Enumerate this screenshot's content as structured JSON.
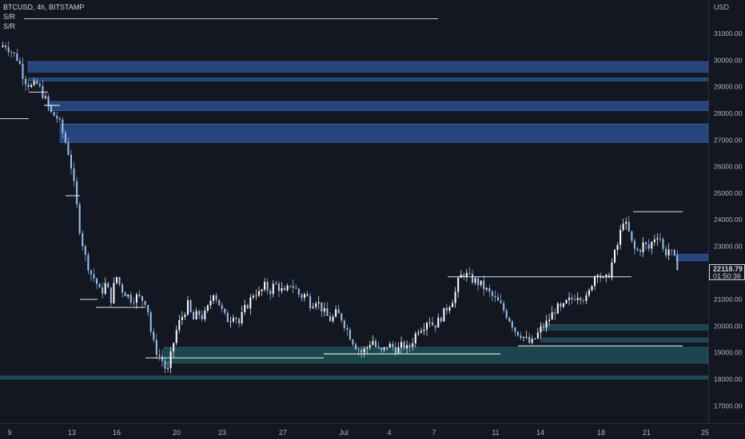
{
  "legend": {
    "symbol": "BTCUSD, 4h, BITSTAMP",
    "indicators": [
      "S/R",
      "S/R"
    ]
  },
  "axis": {
    "unit": "USD",
    "y_ticks": [
      "17000.00",
      "18000.00",
      "19000.00",
      "20000.00",
      "21000.00",
      "22000.00",
      "23000.00",
      "24000.00",
      "25000.00",
      "26000.00",
      "27000.00",
      "28000.00",
      "29000.00",
      "30000.00",
      "31000.00"
    ],
    "x_ticks": [
      "9",
      "13",
      "16",
      "20",
      "23",
      "27",
      "Jul",
      "4",
      "7",
      "11",
      "14",
      "18",
      "21",
      "25"
    ]
  },
  "last_price": {
    "value": "22118.79",
    "countdown": "01:50:36"
  },
  "colors": {
    "background": "#131722",
    "candle_up": "#ffffff",
    "candle_down": "#9dc2ec",
    "resistance_zone": "#2a4e8a",
    "support_zone": "#1e4d56",
    "level_line": "#ffffff",
    "text": "#b2b5be"
  },
  "chart_data": {
    "type": "candlestick",
    "symbol": "BTCUSD",
    "timeframe": "4h",
    "exchange": "BITSTAMP",
    "y_range": [
      16500,
      32200
    ],
    "x_range": [
      8.2,
      25.2
    ],
    "close_path": [
      [
        8.2,
        30500
      ],
      [
        8.5,
        30600
      ],
      [
        8.9,
        30300
      ],
      [
        9.3,
        30000
      ],
      [
        9.6,
        29300
      ],
      [
        10.0,
        29000
      ],
      [
        10.4,
        29100
      ],
      [
        10.8,
        28600
      ],
      [
        11.2,
        28000
      ],
      [
        11.6,
        27800
      ],
      [
        12.0,
        27000
      ],
      [
        12.3,
        26300
      ],
      [
        12.6,
        25000
      ],
      [
        12.9,
        23500
      ],
      [
        13.2,
        22600
      ],
      [
        13.5,
        22000
      ],
      [
        13.8,
        21700
      ],
      [
        14.1,
        21200
      ],
      [
        14.4,
        21600
      ],
      [
        14.7,
        21000
      ],
      [
        15.0,
        21900
      ],
      [
        15.3,
        21400
      ],
      [
        15.6,
        21200
      ],
      [
        15.9,
        21000
      ],
      [
        16.2,
        21100
      ],
      [
        16.5,
        21000
      ],
      [
        16.8,
        20900
      ],
      [
        17.1,
        19500
      ],
      [
        17.4,
        19000
      ],
      [
        17.7,
        18700
      ],
      [
        18.0,
        18200
      ],
      [
        18.3,
        19200
      ],
      [
        18.6,
        20000
      ],
      [
        18.9,
        20400
      ],
      [
        19.2,
        20800
      ],
      [
        19.5,
        20200
      ],
      [
        19.8,
        20500
      ],
      [
        20.1,
        20300
      ],
      [
        20.4,
        20700
      ],
      [
        20.7,
        21300
      ],
      [
        21.0,
        20900
      ],
      [
        21.3,
        20400
      ],
      [
        21.6,
        20200
      ],
      [
        21.9,
        20500
      ],
      [
        22.2,
        20100
      ],
      [
        22.5,
        20600
      ],
      [
        22.8,
        20900
      ],
      [
        23.1,
        21300
      ],
      [
        23.4,
        21200
      ],
      [
        23.7,
        21500
      ],
      [
        24.0,
        21300
      ],
      [
        24.3,
        21600
      ],
      [
        24.6,
        21400
      ],
      [
        24.9,
        21200
      ],
      [
        25.2,
        21600
      ],
      [
        25.5,
        21400
      ],
      [
        25.8,
        21100
      ],
      [
        26.1,
        21200
      ],
      [
        26.4,
        20800
      ],
      [
        26.7,
        21000
      ],
      [
        27.0,
        20700
      ],
      [
        27.3,
        20400
      ],
      [
        27.6,
        20200
      ],
      [
        27.9,
        20500
      ],
      [
        28.2,
        20300
      ],
      [
        28.5,
        19900
      ],
      [
        28.8,
        19500
      ],
      [
        29.1,
        19200
      ],
      [
        29.4,
        19000
      ],
      [
        29.7,
        19200
      ],
      [
        30.0,
        19500
      ],
      [
        30.3,
        19100
      ],
      [
        30.6,
        19000
      ],
      [
        30.9,
        19300
      ],
      [
        31.2,
        19200
      ],
      [
        31.5,
        19100
      ],
      [
        31.8,
        19300
      ],
      [
        32.1,
        19100
      ],
      [
        32.4,
        19500
      ],
      [
        32.7,
        19900
      ],
      [
        33.0,
        20000
      ],
      [
        33.3,
        20300
      ],
      [
        33.6,
        20000
      ],
      [
        33.9,
        20200
      ],
      [
        34.2,
        20500
      ],
      [
        34.5,
        20800
      ],
      [
        34.8,
        21100
      ],
      [
        35.1,
        21800
      ],
      [
        35.4,
        22000
      ],
      [
        35.7,
        21800
      ],
      [
        36.0,
        21700
      ],
      [
        36.3,
        21600
      ],
      [
        36.6,
        21400
      ],
      [
        36.9,
        21200
      ],
      [
        37.2,
        21000
      ],
      [
        37.5,
        20800
      ],
      [
        37.8,
        20500
      ],
      [
        38.1,
        20200
      ],
      [
        38.4,
        19800
      ],
      [
        38.7,
        19700
      ],
      [
        39.0,
        19500
      ],
      [
        39.3,
        19300
      ],
      [
        39.6,
        19600
      ],
      [
        39.9,
        19900
      ],
      [
        40.2,
        20100
      ],
      [
        40.5,
        20400
      ],
      [
        40.8,
        20700
      ],
      [
        41.1,
        20600
      ],
      [
        41.4,
        20900
      ],
      [
        41.7,
        21000
      ],
      [
        42.0,
        21200
      ],
      [
        42.3,
        21100
      ],
      [
        42.6,
        21000
      ],
      [
        42.9,
        21700
      ],
      [
        43.2,
        22100
      ],
      [
        43.5,
        21700
      ],
      [
        43.8,
        21800
      ],
      [
        44.1,
        22500
      ],
      [
        44.4,
        23100
      ],
      [
        44.7,
        24000
      ],
      [
        45.0,
        23600
      ],
      [
        45.3,
        22900
      ],
      [
        45.6,
        22800
      ],
      [
        45.9,
        23100
      ],
      [
        46.2,
        22900
      ],
      [
        46.5,
        23300
      ],
      [
        46.8,
        23500
      ],
      [
        47.1,
        22700
      ],
      [
        47.4,
        22900
      ],
      [
        47.7,
        22500
      ],
      [
        48.0,
        22100
      ]
    ],
    "resistance_zones": [
      [
        29550,
        29950
      ],
      [
        29220,
        29330
      ],
      [
        28100,
        28450
      ],
      [
        26900,
        27600
      ],
      [
        22450,
        22700
      ]
    ],
    "support_zones": [
      [
        18600,
        19200
      ],
      [
        19850,
        20050
      ],
      [
        19400,
        19550
      ],
      [
        18000,
        18120
      ]
    ],
    "horizontal_levels": [
      27800,
      24900,
      21700,
      21000,
      18800,
      18900,
      21850,
      19200,
      24300
    ],
    "last_price": 22118.79
  }
}
